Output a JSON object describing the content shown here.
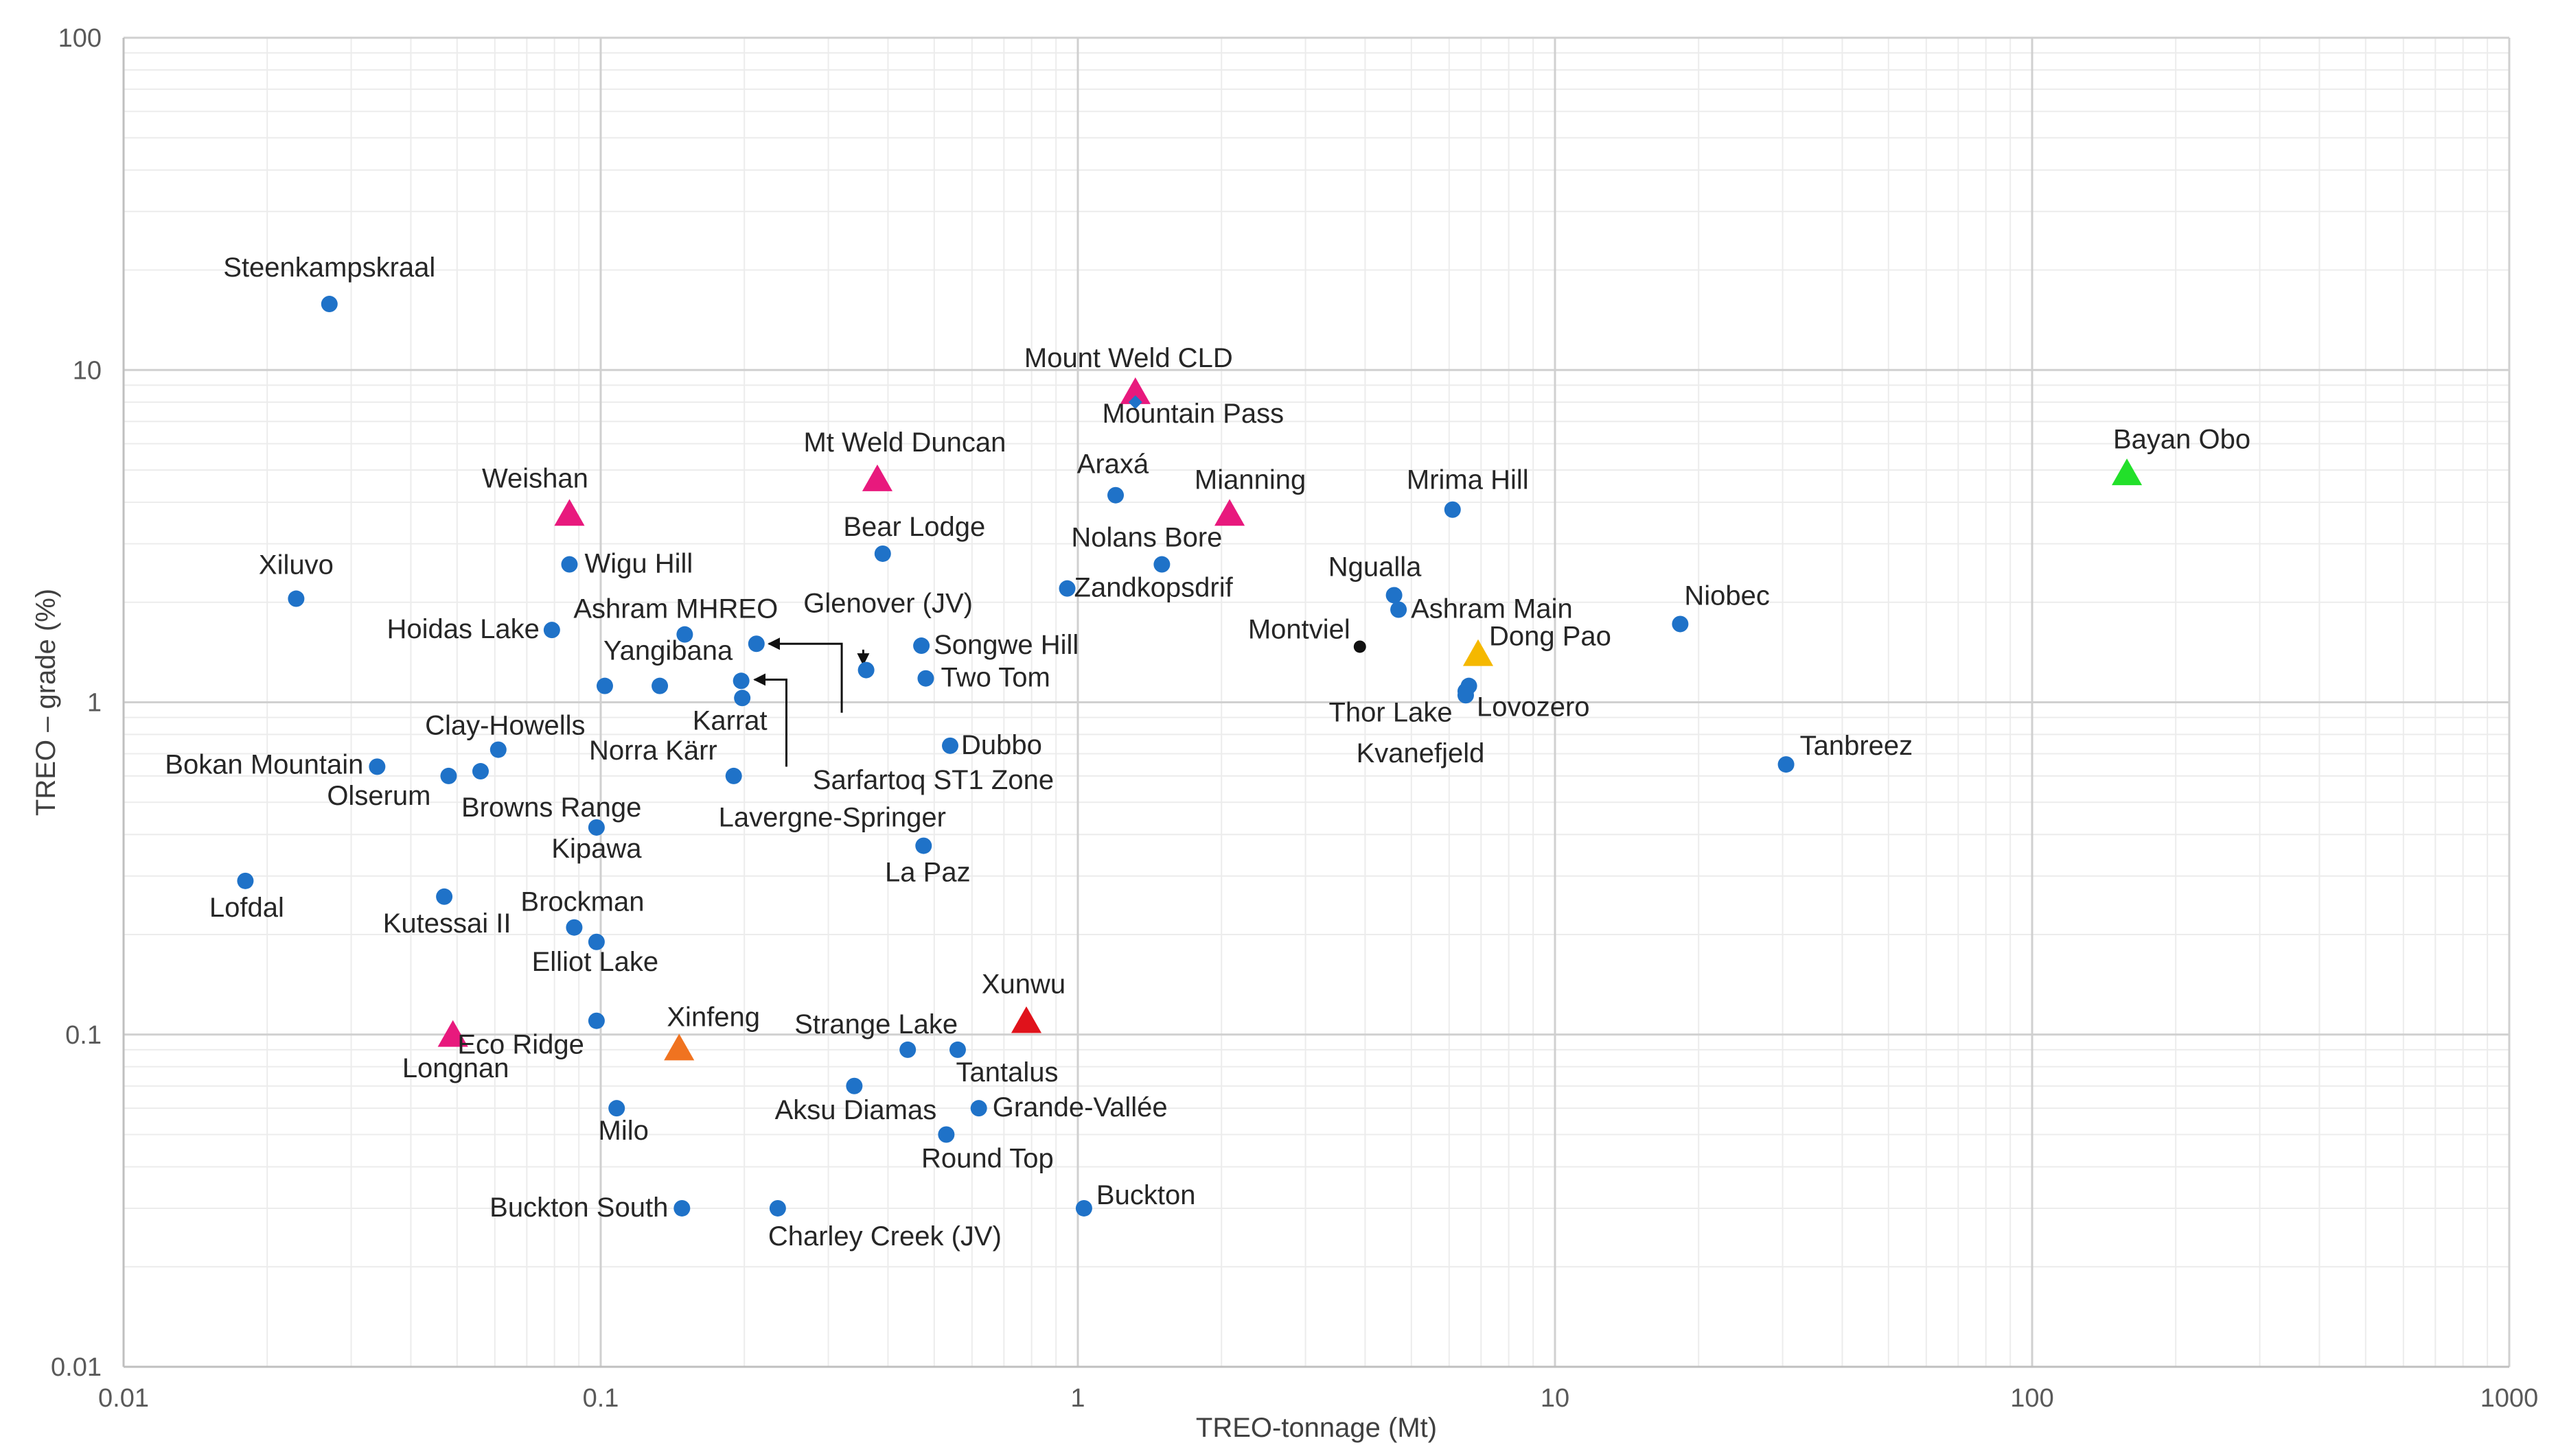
{
  "chart_data": {
    "type": "scatter",
    "title": "",
    "xlabel": "TREO-tonnage (Mt)",
    "ylabel": "TREO – grade (%)",
    "x_scale": "log",
    "y_scale": "log",
    "xlim": [
      0.01,
      1000
    ],
    "ylim": [
      0.01,
      100
    ],
    "x_ticks": [
      "0.01",
      "0.1",
      "1",
      "10",
      "100",
      "1000"
    ],
    "y_ticks": [
      "0.01",
      "0.1",
      "1",
      "10",
      "100"
    ],
    "grid": true,
    "legend": "none",
    "colors": {
      "deposit": "#1f72c8",
      "magenta": "#e8197d",
      "red": "#e0121b",
      "orange": "#f07320",
      "yellow": "#f5b800",
      "green": "#22e02a",
      "black": "#111111"
    },
    "points": [
      {
        "name": "Steenkampskraal",
        "x": 0.027,
        "y": 15.8,
        "marker": "circle",
        "color": "deposit"
      },
      {
        "name": "Xiluvo",
        "x": 0.023,
        "y": 2.05,
        "marker": "circle",
        "color": "deposit"
      },
      {
        "name": "Weishan",
        "x": 0.086,
        "y": 3.7,
        "marker": "triangle",
        "color": "magenta"
      },
      {
        "name": "Wigu Hill",
        "x": 0.086,
        "y": 2.6,
        "marker": "circle",
        "color": "deposit"
      },
      {
        "name": "Hoidas Lake",
        "x": 0.079,
        "y": 1.65,
        "marker": "circle",
        "color": "deposit"
      },
      {
        "name": "Ashram MHREO",
        "x": 0.15,
        "y": 1.6,
        "marker": "circle",
        "color": "deposit"
      },
      {
        "name": "Yangibana",
        "x": 0.102,
        "y": 1.12,
        "marker": "circle",
        "color": "deposit"
      },
      {
        "name": "",
        "x": 0.133,
        "y": 1.12,
        "marker": "circle",
        "color": "deposit"
      },
      {
        "name": "Karrat",
        "x": 0.198,
        "y": 1.03,
        "marker": "circle",
        "color": "deposit"
      },
      {
        "name": "Lavergne-Springer",
        "x": 0.197,
        "y": 1.16,
        "marker": "circle",
        "color": "deposit"
      },
      {
        "name": "Sarfartoq ST1 Zone",
        "x": 0.212,
        "y": 1.5,
        "marker": "circle",
        "color": "deposit"
      },
      {
        "name": "Clay-Howells",
        "x": 0.061,
        "y": 0.72,
        "marker": "circle",
        "color": "deposit"
      },
      {
        "name": "Bokan Mountain",
        "x": 0.034,
        "y": 0.64,
        "marker": "circle",
        "color": "deposit"
      },
      {
        "name": "Olserum",
        "x": 0.048,
        "y": 0.6,
        "marker": "circle",
        "color": "deposit"
      },
      {
        "name": "Browns Range",
        "x": 0.056,
        "y": 0.62,
        "marker": "circle",
        "color": "deposit"
      },
      {
        "name": "Norra Kärr",
        "x": 0.19,
        "y": 0.6,
        "marker": "circle",
        "color": "deposit"
      },
      {
        "name": "Kipawa",
        "x": 0.098,
        "y": 0.42,
        "marker": "circle",
        "color": "deposit"
      },
      {
        "name": "Lofdal",
        "x": 0.018,
        "y": 0.29,
        "marker": "circle",
        "color": "deposit"
      },
      {
        "name": "Kutessai II",
        "x": 0.047,
        "y": 0.26,
        "marker": "circle",
        "color": "deposit"
      },
      {
        "name": "Brockman",
        "x": 0.088,
        "y": 0.21,
        "marker": "circle",
        "color": "deposit"
      },
      {
        "name": "Elliot Lake",
        "x": 0.098,
        "y": 0.19,
        "marker": "circle",
        "color": "deposit"
      },
      {
        "name": "Longnan",
        "x": 0.049,
        "y": 0.1,
        "marker": "triangle",
        "color": "magenta"
      },
      {
        "name": "Eco Ridge",
        "x": 0.098,
        "y": 0.11,
        "marker": "circle",
        "color": "deposit"
      },
      {
        "name": "Xinfeng",
        "x": 0.146,
        "y": 0.091,
        "marker": "triangle",
        "color": "orange"
      },
      {
        "name": "Milo",
        "x": 0.108,
        "y": 0.06,
        "marker": "circle",
        "color": "deposit"
      },
      {
        "name": "Buckton South",
        "x": 0.148,
        "y": 0.03,
        "marker": "circle",
        "color": "deposit"
      },
      {
        "name": "Charley Creek (JV)",
        "x": 0.235,
        "y": 0.03,
        "marker": "circle",
        "color": "deposit"
      },
      {
        "name": "Mount Weld CLD",
        "x": 1.32,
        "y": 8.6,
        "marker": "triangle",
        "color": "magenta"
      },
      {
        "name": "Mountain Pass",
        "x": 1.32,
        "y": 8.0,
        "marker": "diamond",
        "color": "deposit"
      },
      {
        "name": "Mt Weld Duncan",
        "x": 0.38,
        "y": 4.7,
        "marker": "triangle",
        "color": "magenta"
      },
      {
        "name": "Araxá",
        "x": 1.2,
        "y": 4.2,
        "marker": "circle",
        "color": "deposit"
      },
      {
        "name": "Mianning",
        "x": 2.08,
        "y": 3.7,
        "marker": "triangle",
        "color": "magenta"
      },
      {
        "name": "Bear Lodge",
        "x": 0.39,
        "y": 2.8,
        "marker": "circle",
        "color": "deposit"
      },
      {
        "name": "Nolans Bore",
        "x": 1.5,
        "y": 2.6,
        "marker": "circle",
        "color": "deposit"
      },
      {
        "name": "Zandkopsdrif",
        "x": 0.95,
        "y": 2.2,
        "marker": "circle",
        "color": "deposit"
      },
      {
        "name": "Glenover (JV)",
        "x": 0.36,
        "y": 1.25,
        "marker": "circle",
        "color": "deposit"
      },
      {
        "name": "Songwe Hill",
        "x": 0.47,
        "y": 1.48,
        "marker": "circle",
        "color": "deposit"
      },
      {
        "name": "Two Tom",
        "x": 0.48,
        "y": 1.18,
        "marker": "circle",
        "color": "deposit"
      },
      {
        "name": "Dubbo",
        "x": 0.54,
        "y": 0.74,
        "marker": "circle",
        "color": "deposit"
      },
      {
        "name": "La Paz",
        "x": 0.475,
        "y": 0.37,
        "marker": "circle",
        "color": "deposit"
      },
      {
        "name": "Xunwu",
        "x": 0.78,
        "y": 0.11,
        "marker": "triangle",
        "color": "red"
      },
      {
        "name": "Strange Lake",
        "x": 0.44,
        "y": 0.09,
        "marker": "circle",
        "color": "deposit"
      },
      {
        "name": "Tantalus",
        "x": 0.56,
        "y": 0.09,
        "marker": "circle",
        "color": "deposit"
      },
      {
        "name": "Aksu Diamas",
        "x": 0.34,
        "y": 0.07,
        "marker": "circle",
        "color": "deposit"
      },
      {
        "name": "Grande-Vallée",
        "x": 0.62,
        "y": 0.06,
        "marker": "circle",
        "color": "deposit"
      },
      {
        "name": "Round Top",
        "x": 0.53,
        "y": 0.05,
        "marker": "circle",
        "color": "deposit"
      },
      {
        "name": "Buckton",
        "x": 1.03,
        "y": 0.03,
        "marker": "circle",
        "color": "deposit"
      },
      {
        "name": "Mrima Hill",
        "x": 6.1,
        "y": 3.8,
        "marker": "circle",
        "color": "deposit"
      },
      {
        "name": "Ngualla",
        "x": 4.6,
        "y": 2.1,
        "marker": "circle",
        "color": "deposit"
      },
      {
        "name": "Ashram Main",
        "x": 4.7,
        "y": 1.9,
        "marker": "circle",
        "color": "deposit"
      },
      {
        "name": "Montviel",
        "x": 3.9,
        "y": 1.47,
        "marker": "circle",
        "color": "black"
      },
      {
        "name": "Dong Pao",
        "x": 6.9,
        "y": 1.4,
        "marker": "triangle",
        "color": "yellow"
      },
      {
        "name": "Thor Lake",
        "x": 6.6,
        "y": 1.12,
        "marker": "circle",
        "color": "deposit"
      },
      {
        "name": "Lovozero",
        "x": 6.5,
        "y": 1.08,
        "marker": "circle",
        "color": "deposit"
      },
      {
        "name": "Kvanefjeld",
        "x": 6.5,
        "y": 1.05,
        "marker": "circle",
        "color": "deposit"
      },
      {
        "name": "Niobec",
        "x": 18.3,
        "y": 1.72,
        "marker": "circle",
        "color": "deposit"
      },
      {
        "name": "Tanbreez",
        "x": 30.5,
        "y": 0.65,
        "marker": "circle",
        "color": "deposit"
      },
      {
        "name": "Bayan Obo",
        "x": 158,
        "y": 4.9,
        "marker": "triangle",
        "color": "green"
      }
    ],
    "annotations": [
      {
        "label": "Glenover (JV)",
        "arrow_from": [
          0.355,
          1.44
        ],
        "arrow_to": [
          0.355,
          1.3
        ],
        "path": [
          [
            0.355,
            1.44
          ],
          [
            0.355,
            1.3
          ]
        ]
      },
      {
        "label": "Sarfartoq ST1 Zone",
        "path": [
          [
            0.32,
            0.93
          ],
          [
            0.32,
            1.5
          ],
          [
            0.225,
            1.5
          ]
        ]
      },
      {
        "label": "Lavergne-Springer",
        "path": [
          [
            0.245,
            0.64
          ],
          [
            0.245,
            1.17
          ],
          [
            0.21,
            1.17
          ]
        ]
      }
    ]
  }
}
